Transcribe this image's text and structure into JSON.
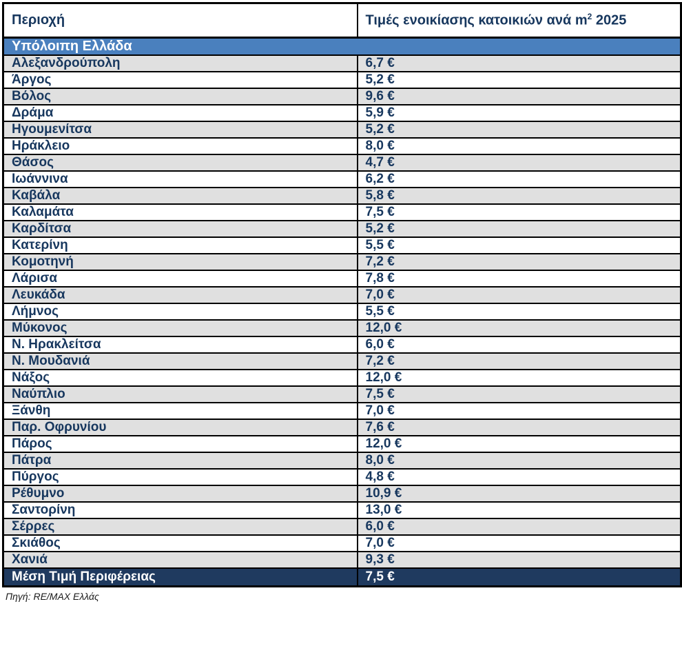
{
  "table": {
    "header": {
      "region": "Περιοχή",
      "price_prefix": "Τιμές ενοικίασης κατοικιών ανά m",
      "price_sup": "2",
      "price_suffix": " 2025"
    },
    "section_header": "Υπόλοιπη Ελλάδα",
    "rows": [
      {
        "region": "Αλεξανδρούπολη",
        "price": "6,7 €"
      },
      {
        "region": "Άργος",
        "price": "5,2 €"
      },
      {
        "region": "Βόλος",
        "price": "9,6 €"
      },
      {
        "region": "Δράμα",
        "price": "5,9 €"
      },
      {
        "region": "Ηγουμενίτσα",
        "price": "5,2 €"
      },
      {
        "region": "Ηράκλειο",
        "price": "8,0 €"
      },
      {
        "region": "Θάσος",
        "price": "4,7 €"
      },
      {
        "region": "Ιωάννινα",
        "price": "6,2 €"
      },
      {
        "region": "Καβάλα",
        "price": "5,8 €"
      },
      {
        "region": "Καλαμάτα",
        "price": "7,5 €"
      },
      {
        "region": "Καρδίτσα",
        "price": "5,2 €"
      },
      {
        "region": "Κατερίνη",
        "price": "5,5 €"
      },
      {
        "region": "Κομοτηνή",
        "price": "7,2 €"
      },
      {
        "region": "Λάρισα",
        "price": "7,8 €"
      },
      {
        "region": "Λευκάδα",
        "price": "7,0 €"
      },
      {
        "region": "Λήμνος",
        "price": "5,5 €"
      },
      {
        "region": "Μύκονος",
        "price": "12,0 €"
      },
      {
        "region": "Ν. Ηρακλείτσα",
        "price": "6,0 €"
      },
      {
        "region": "Ν. Μουδανιά",
        "price": "7,2 €"
      },
      {
        "region": "Νάξος",
        "price": "12,0 €"
      },
      {
        "region": "Ναύπλιο",
        "price": "7,5 €"
      },
      {
        "region": "Ξάνθη",
        "price": "7,0 €"
      },
      {
        "region": "Παρ. Οφρυνίου",
        "price": "7,6 €"
      },
      {
        "region": "Πάρος",
        "price": "12,0 €"
      },
      {
        "region": "Πάτρα",
        "price": "8,0 €"
      },
      {
        "region": "Πύργος",
        "price": "4,8 €"
      },
      {
        "region": "Ρέθυμνο",
        "price": "10,9 €"
      },
      {
        "region": "Σαντορίνη",
        "price": "13,0 €"
      },
      {
        "region": "Σέρρες",
        "price": "6,0 €"
      },
      {
        "region": "Σκιάθος",
        "price": "7,0 €"
      },
      {
        "region": "Χανιά",
        "price": "9,3 €"
      }
    ],
    "footer": {
      "label": "Μέση Τιμή Περιφέρειας",
      "value": "7,5 €"
    }
  },
  "source": "Πηγή: RE/MAX Ελλάς",
  "colors": {
    "text_navy": "#17375E",
    "section_blue": "#4A80BE",
    "footer_navy": "#1F3A5F",
    "row_shade_gray": "#E0E0E0",
    "border_black": "#000000"
  }
}
